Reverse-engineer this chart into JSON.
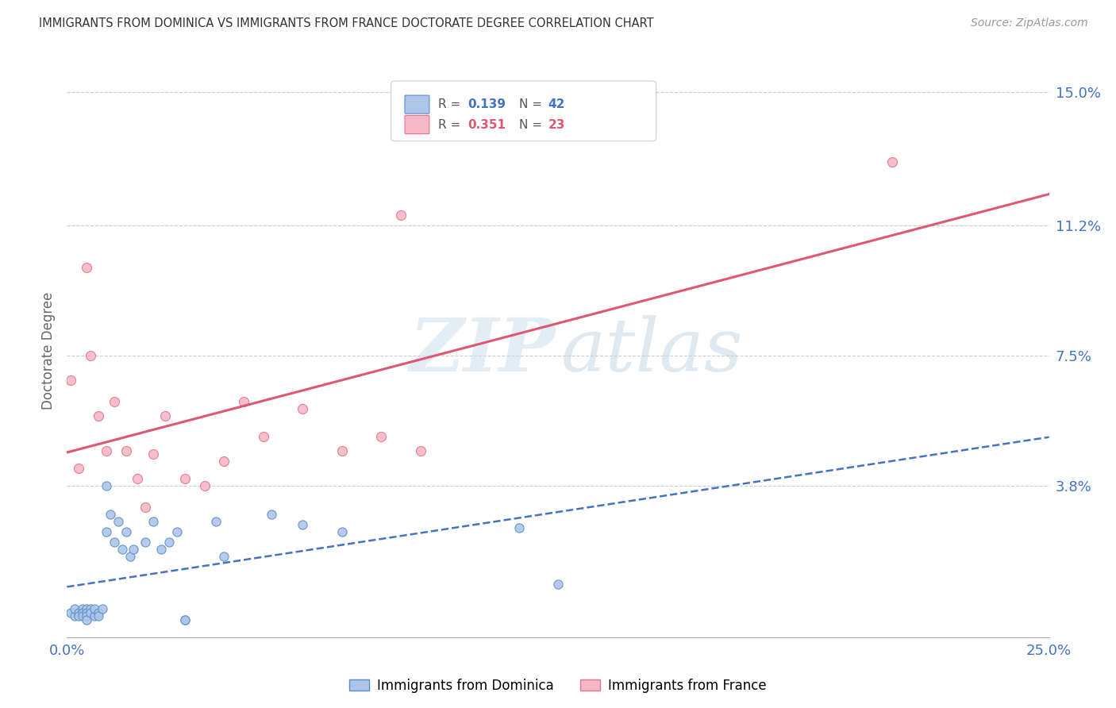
{
  "title": "IMMIGRANTS FROM DOMINICA VS IMMIGRANTS FROM FRANCE DOCTORATE DEGREE CORRELATION CHART",
  "source": "Source: ZipAtlas.com",
  "ylabel": "Doctorate Degree",
  "xlim": [
    0.0,
    0.25
  ],
  "ylim": [
    -0.005,
    0.158
  ],
  "ytick_positions": [
    0.0,
    0.038,
    0.075,
    0.112,
    0.15
  ],
  "ytick_labels": [
    "",
    "3.8%",
    "7.5%",
    "11.2%",
    "15.0%"
  ],
  "xtick_positions": [
    0.0,
    0.05,
    0.1,
    0.15,
    0.2,
    0.25
  ],
  "xtick_labels": [
    "0.0%",
    "",
    "",
    "",
    "",
    "25.0%"
  ],
  "legend_r1": "R = ",
  "legend_v1": "0.139",
  "legend_n1_label": "N = ",
  "legend_n1": "42",
  "legend_r2": "R = ",
  "legend_v2": "0.351",
  "legend_n2_label": "N = ",
  "legend_n2": "23",
  "color_dominica_fill": "#adc6e8",
  "color_dominica_edge": "#5b8ec9",
  "color_dominica_line": "#4472c4",
  "color_france_fill": "#f5b8c4",
  "color_france_edge": "#e8748a",
  "color_france_line": "#e05870",
  "color_axis_labels": "#4472c4",
  "color_grid": "#cccccc",
  "background_color": "#ffffff",
  "dominica_x": [
    0.001,
    0.002,
    0.002,
    0.003,
    0.003,
    0.004,
    0.004,
    0.004,
    0.005,
    0.005,
    0.005,
    0.005,
    0.006,
    0.006,
    0.007,
    0.007,
    0.008,
    0.008,
    0.009,
    0.01,
    0.01,
    0.011,
    0.012,
    0.013,
    0.014,
    0.015,
    0.016,
    0.017,
    0.02,
    0.022,
    0.024,
    0.026,
    0.028,
    0.03,
    0.03,
    0.038,
    0.04,
    0.052,
    0.06,
    0.07,
    0.115,
    0.125
  ],
  "dominica_y": [
    0.002,
    0.001,
    0.003,
    0.002,
    0.001,
    0.003,
    0.002,
    0.001,
    0.003,
    0.002,
    0.001,
    0.0,
    0.003,
    0.002,
    0.001,
    0.003,
    0.002,
    0.001,
    0.003,
    0.038,
    0.025,
    0.03,
    0.022,
    0.028,
    0.02,
    0.025,
    0.018,
    0.02,
    0.022,
    0.028,
    0.02,
    0.022,
    0.025,
    0.0,
    0.0,
    0.028,
    0.018,
    0.03,
    0.027,
    0.025,
    0.026,
    0.01
  ],
  "france_x": [
    0.001,
    0.003,
    0.005,
    0.006,
    0.008,
    0.01,
    0.012,
    0.015,
    0.018,
    0.02,
    0.022,
    0.025,
    0.03,
    0.035,
    0.04,
    0.045,
    0.05,
    0.06,
    0.07,
    0.08,
    0.085,
    0.09,
    0.21
  ],
  "france_y": [
    0.068,
    0.043,
    0.1,
    0.075,
    0.058,
    0.048,
    0.062,
    0.048,
    0.04,
    0.032,
    0.047,
    0.058,
    0.04,
    0.038,
    0.045,
    0.062,
    0.052,
    0.06,
    0.048,
    0.052,
    0.115,
    0.048,
    0.13
  ]
}
